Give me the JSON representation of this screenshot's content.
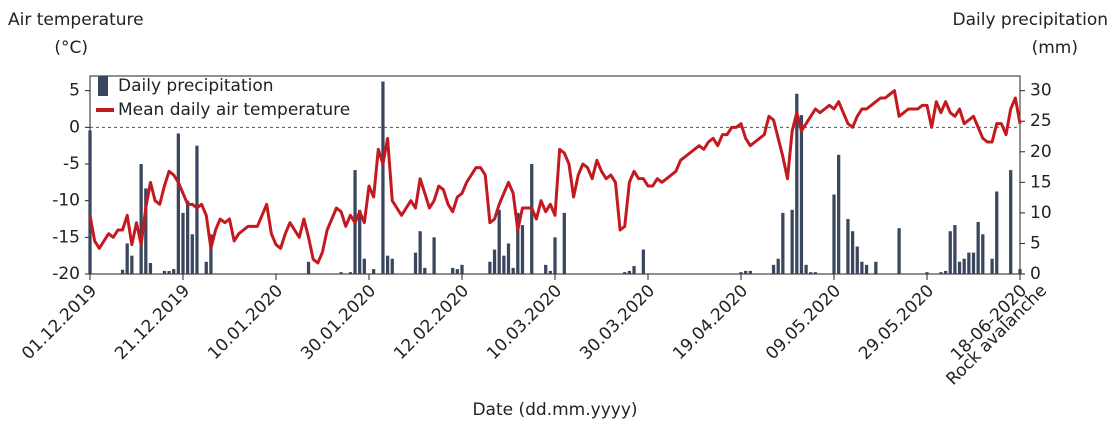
{
  "chart_data": {
    "type": "combo",
    "ylabel": "Air temperature",
    "yunit": "(°C)",
    "y2label": "Daily precipitation",
    "y2unit": "(mm)",
    "xlabel": "Date (dd.mm.yyyy)",
    "annotation": {
      "text": "Rock avalanche",
      "color": "#a8241f"
    },
    "ylim": [
      -20,
      7
    ],
    "yticks": [
      -20,
      -15,
      -10,
      -5,
      0,
      5
    ],
    "y2lim": [
      0,
      32.4
    ],
    "y2ticks": [
      0,
      5,
      10,
      15,
      20,
      25,
      30
    ],
    "zero_line": true,
    "legend": "upper left",
    "categories": [
      "01.12.2019",
      null,
      null,
      null,
      null,
      null,
      null,
      null,
      null,
      null,
      null,
      null,
      null,
      null,
      null,
      null,
      null,
      null,
      null,
      null,
      "21.12.2019",
      null,
      null,
      null,
      null,
      null,
      null,
      null,
      null,
      null,
      null,
      null,
      null,
      null,
      null,
      null,
      null,
      null,
      null,
      null,
      "10.01.2020",
      null,
      null,
      null,
      null,
      null,
      null,
      null,
      null,
      null,
      null,
      null,
      null,
      null,
      null,
      null,
      null,
      null,
      null,
      null,
      "30.01.2020",
      null,
      null,
      null,
      null,
      null,
      null,
      null,
      null,
      null,
      null,
      null,
      null,
      null,
      null,
      null,
      null,
      null,
      null,
      null,
      "12.02.2020",
      null,
      null,
      null,
      null,
      null,
      null,
      null,
      null,
      null,
      null,
      null,
      null,
      null,
      null,
      null,
      null,
      null,
      null,
      null,
      "10.03.2020",
      null,
      null,
      null,
      null,
      null,
      null,
      null,
      null,
      null,
      null,
      null,
      null,
      null,
      null,
      null,
      null,
      null,
      null,
      null,
      "30.03.2020",
      null,
      null,
      null,
      null,
      null,
      null,
      null,
      null,
      null,
      null,
      null,
      null,
      null,
      null,
      null,
      null,
      null,
      null,
      null,
      "19.04.2020",
      null,
      null,
      null,
      null,
      null,
      null,
      null,
      null,
      null,
      null,
      null,
      null,
      null,
      null,
      null,
      null,
      null,
      null,
      null,
      "09.05.2020",
      null,
      null,
      null,
      null,
      null,
      null,
      null,
      null,
      null,
      null,
      null,
      null,
      null,
      null,
      null,
      null,
      null,
      null,
      null,
      "29.05.2020",
      null,
      null,
      null,
      null,
      null,
      null,
      null,
      null,
      null,
      null,
      null,
      null,
      null,
      null,
      null,
      null,
      null,
      null,
      null,
      "18-06-2020"
    ],
    "series": [
      {
        "name": "Daily precipitation",
        "type": "bar",
        "axis": "y2",
        "color": "#3a465e",
        "values": [
          23.5,
          0,
          0,
          0,
          0,
          0,
          0,
          0.7,
          5,
          3,
          0,
          18,
          14,
          1.8,
          0,
          0,
          0.5,
          0.5,
          0.8,
          23,
          10,
          12,
          6.5,
          21,
          0,
          2,
          6.5,
          0,
          0,
          0,
          0,
          0,
          0,
          0,
          0,
          0,
          0,
          0,
          0,
          0,
          0,
          0,
          0,
          0,
          0,
          0,
          0,
          2,
          0,
          0,
          0,
          0,
          0,
          0,
          0.3,
          0,
          0.3,
          17,
          10.5,
          2.5,
          0,
          0.8,
          0,
          31.5,
          3,
          2.5,
          0,
          0,
          0,
          0,
          3.5,
          7,
          1,
          0,
          6,
          0,
          0,
          0,
          1,
          0.8,
          1.5,
          0,
          0,
          0,
          0,
          0,
          2,
          4,
          10.5,
          3,
          5,
          1,
          10,
          8,
          0,
          18,
          0,
          0,
          1.5,
          0.5,
          6,
          0,
          10,
          0,
          0,
          0,
          0,
          0,
          0,
          0,
          0,
          0,
          0,
          0,
          0,
          0.3,
          0.5,
          1.3,
          0,
          4,
          0,
          0,
          0,
          0,
          0,
          0,
          0,
          0,
          0,
          0,
          0,
          0,
          0,
          0,
          0,
          0,
          0,
          0,
          0,
          0,
          0.3,
          0.5,
          0.5,
          0,
          0,
          0,
          0,
          1.5,
          2.5,
          10,
          0,
          10.5,
          29.5,
          26,
          1.5,
          0.3,
          0.3,
          0,
          0,
          0,
          13,
          19.5,
          0,
          9,
          7,
          4.5,
          2,
          1.5,
          0,
          2,
          0,
          0,
          0,
          0,
          7.5,
          0,
          0,
          0,
          0,
          0,
          0.3,
          0,
          0,
          0.3,
          0.5,
          7,
          8,
          2,
          2.5,
          3.5,
          3.5,
          8.5,
          6.5,
          0,
          2.5,
          13.5,
          0,
          0,
          17,
          0,
          0.8
        ]
      },
      {
        "name": "Mean daily air temperature",
        "type": "line",
        "color": "#c3191f",
        "values": [
          -12,
          -15.5,
          -16.5,
          -15.5,
          -14.5,
          -15,
          -14,
          -14,
          -12,
          -16,
          -13,
          -16,
          -11,
          -7.5,
          -10,
          -10.5,
          -8,
          -6,
          -6.5,
          -7.5,
          -9,
          -10.5,
          -10.5,
          -11,
          -10.5,
          -12,
          -16.5,
          -14,
          -12.5,
          -13,
          -12.5,
          -15.5,
          -14.5,
          -14,
          -13.5,
          -13.5,
          -13.5,
          -12,
          -10.5,
          -14.5,
          -16,
          -16.5,
          -14.5,
          -13,
          -14,
          -15,
          -12.5,
          -15,
          -18,
          -18.5,
          -17,
          -14,
          -12.5,
          -11,
          -11.5,
          -13.5,
          -12,
          -13,
          -11.5,
          -13,
          -8,
          -9.5,
          -3,
          -5,
          -1.5,
          -10,
          -11,
          -12,
          -11,
          -10,
          -11,
          -7,
          -9,
          -11,
          -10,
          -8,
          -8.5,
          -10.5,
          -11.5,
          -9.5,
          -9,
          -7.5,
          -6.5,
          -5.5,
          -5.5,
          -6.5,
          -13,
          -12.5,
          -10.5,
          -9,
          -7.5,
          -9,
          -14,
          -11,
          -11,
          -11,
          -12.5,
          -10,
          -11.5,
          -10.5,
          -12,
          -3,
          -3.5,
          -5,
          -9.5,
          -6.5,
          -5,
          -5.5,
          -7,
          -4.5,
          -6,
          -7,
          -6.5,
          -7.5,
          -14,
          -13.5,
          -7.5,
          -6,
          -7,
          -7,
          -8,
          -8,
          -7,
          -7.5,
          -7,
          -6.5,
          -6,
          -4.5,
          -4,
          -3.5,
          -3,
          -2.5,
          -3,
          -2,
          -1.5,
          -2.5,
          -1,
          -1,
          0,
          0,
          0.5,
          -1.5,
          -2.5,
          -2,
          -1.5,
          -1,
          1.5,
          1,
          -1.5,
          -4,
          -7,
          -0.5,
          2,
          -0.5,
          0.5,
          1.5,
          2.5,
          2,
          2.5,
          3,
          2.5,
          3.5,
          2,
          0.5,
          0,
          1.5,
          2.5,
          2.5,
          3,
          3.5,
          4,
          4,
          4.5,
          5,
          1.5,
          2,
          2.5,
          2.5,
          2.5,
          3,
          3,
          0,
          3.5,
          2,
          3.5,
          2,
          1.5,
          2.5,
          0.5,
          1,
          1.5,
          0,
          -1.5,
          -2,
          -2,
          0.5,
          0.5,
          -1,
          2.5,
          4,
          0.5
        ]
      }
    ]
  }
}
